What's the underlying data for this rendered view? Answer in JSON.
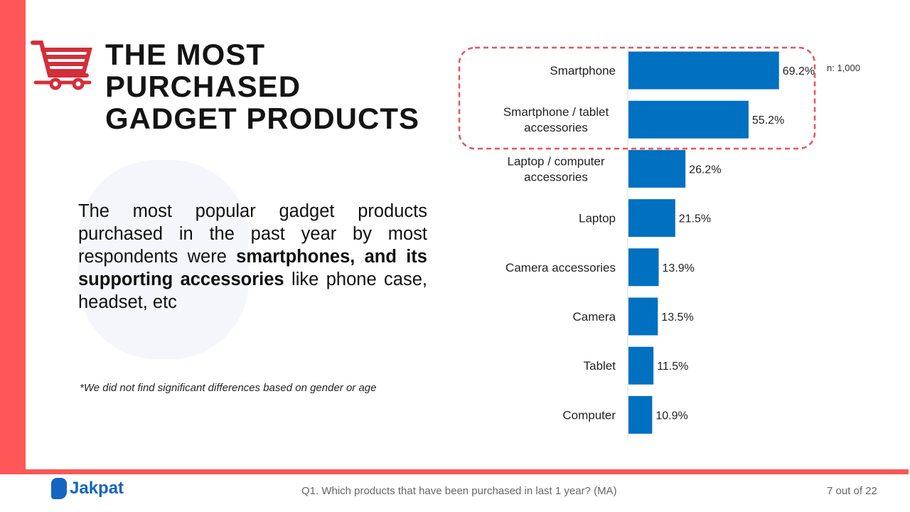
{
  "title_lines": [
    "THE MOST",
    "PURCHASED",
    "GADGET PRODUCTS"
  ],
  "description": {
    "pre": "The most popular gadget products purchased in the past year by most respondents were ",
    "bold": "smartphones, and its supporting accessories",
    "post": " like phone case, headset, etc"
  },
  "note": "*We did not find significant differences based on gender or age",
  "footer": {
    "question": "Q1. Which products that have been purchased in last 1 year? (MA)",
    "page": "7 out of 22",
    "logo": "Jakpat"
  },
  "colors": {
    "accent": "#ff5757",
    "bar": "#0070c0",
    "highlight": "#e8545a",
    "cart": "#d32f3a"
  },
  "icons": [
    "shopping-cart-icon"
  ],
  "chart_data": {
    "type": "bar",
    "orientation": "horizontal",
    "sample_label": "n: 1,000",
    "categories": [
      "Smartphone",
      "Smartphone / tablet accessories",
      "Laptop / computer accessories",
      "Laptop",
      "Camera accessories",
      "Camera",
      "Tablet",
      "Computer"
    ],
    "values": [
      69.2,
      55.2,
      26.2,
      21.5,
      13.9,
      13.5,
      11.5,
      10.9
    ],
    "labels": [
      "69.2%",
      "55.2%",
      "26.2%",
      "21.5%",
      "13.9%",
      "13.5%",
      "11.5%",
      "10.9%"
    ],
    "highlighted": [
      "Smartphone",
      "Smartphone / tablet accessories"
    ],
    "xlim": [
      0,
      100
    ]
  }
}
